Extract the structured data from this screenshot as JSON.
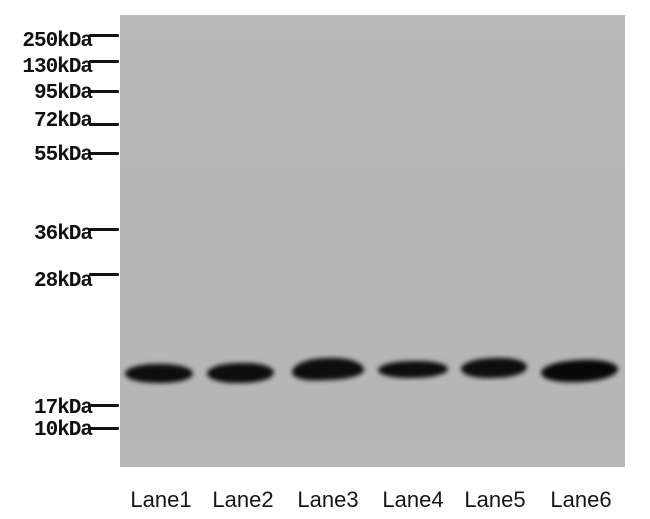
{
  "figure": {
    "kind": "western-blot",
    "description": "Western blot membrane with nine molecular weight markers on the left and six sample lanes, each showing one strong band between the 17kDa and 28kDa markers (apparent MW ~20 kDa)."
  },
  "colors": {
    "background": "#ffffff",
    "membrane": "#b6b6b6",
    "band": "#0d0d0d",
    "text": "#111111"
  },
  "mw_markers": [
    {
      "label": "250kDa"
    },
    {
      "label": "130kDa"
    },
    {
      "label": "95kDa"
    },
    {
      "label": "72kDa"
    },
    {
      "label": "55kDa"
    },
    {
      "label": "36kDa"
    },
    {
      "label": "28kDa"
    },
    {
      "label": "17kDa"
    },
    {
      "label": "10kDa"
    }
  ],
  "lanes": [
    {
      "label": "Lane1",
      "band_present": true,
      "band_intensity": "strong"
    },
    {
      "label": "Lane2",
      "band_present": true,
      "band_intensity": "strong"
    },
    {
      "label": "Lane3",
      "band_present": true,
      "band_intensity": "strong"
    },
    {
      "label": "Lane4",
      "band_present": true,
      "band_intensity": "strong"
    },
    {
      "label": "Lane5",
      "band_present": true,
      "band_intensity": "strong"
    },
    {
      "label": "Lane6",
      "band_present": true,
      "band_intensity": "strongest"
    }
  ],
  "bands_summary": {
    "count": 6,
    "apparent_mw": "~20 kDa (between 17kDa and 28kDa markers)"
  }
}
